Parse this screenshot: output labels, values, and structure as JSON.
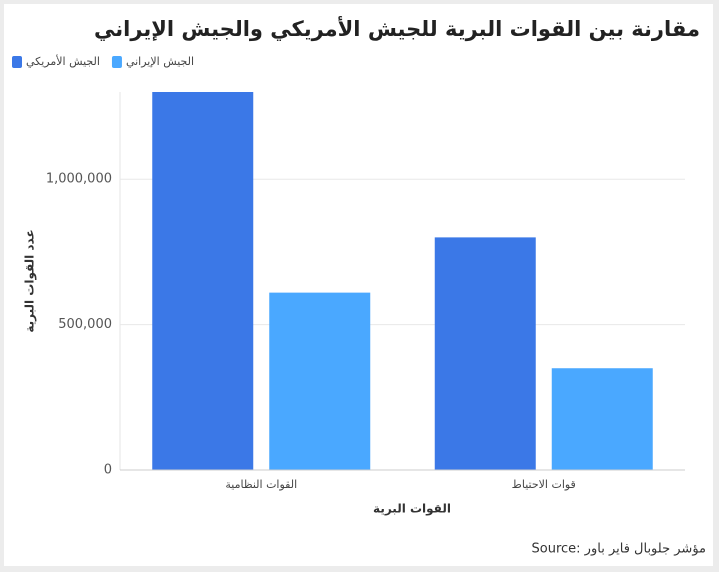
{
  "chart_data": {
    "type": "bar",
    "title": "مقارنة بين القوات البرية للجيش الأمريكي والجيش الإيراني",
    "categories": [
      "القوات النظامية",
      "قوات الاحتياط"
    ],
    "series": [
      {
        "name": "الجيش الأمريكي",
        "color": "#3b78e7",
        "values": [
          1300000,
          800000
        ]
      },
      {
        "name": "الجيش الإيراني",
        "color": "#4aa8ff",
        "values": [
          610000,
          350000
        ]
      }
    ],
    "x_label": "القوات البرية",
    "y_label": "عدد القوات البرية",
    "ylim": [
      0,
      1300000
    ],
    "yticks": [
      0,
      {
        "value": 500000,
        "label": "500,000"
      },
      {
        "value": 1000000,
        "label": "1,000,000"
      }
    ],
    "grid": true,
    "legend": "top-left",
    "source": "Source: مؤشر جلوبال فاير باور"
  }
}
